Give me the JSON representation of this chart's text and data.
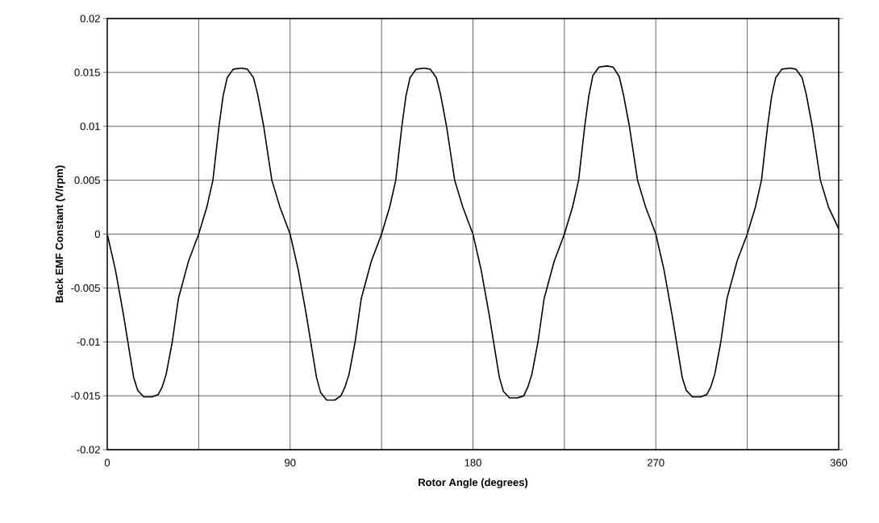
{
  "chart_data": {
    "type": "line",
    "xlabel": "Rotor Angle (degrees)",
    "ylabel": "Back EMF Constant (V/rpm)",
    "xlim": [
      0,
      360
    ],
    "ylim": [
      -0.02,
      0.02
    ],
    "xticks": [
      0,
      {
        "value": 45,
        "label": null
      },
      90,
      {
        "value": 135,
        "label": null
      },
      180,
      {
        "value": 225,
        "label": null
      },
      270,
      {
        "value": 315,
        "label": null
      },
      360
    ],
    "yticks": [
      -0.02,
      -0.015,
      -0.01,
      -0.005,
      0,
      0.005,
      0.01,
      0.015,
      0.02
    ],
    "grid": true,
    "marker": "none",
    "line_style": "solid",
    "series": [
      {
        "color": "#000000",
        "x": [
          0,
          4,
          8,
          11,
          13,
          15,
          18,
          22,
          25,
          27,
          29,
          32,
          35,
          40,
          45,
          49,
          52,
          55,
          57,
          59,
          62,
          66,
          69,
          72,
          74,
          77,
          81,
          85,
          90,
          94,
          98,
          101,
          103,
          105,
          108,
          112,
          115,
          117,
          119,
          122,
          125,
          130,
          135,
          139,
          142,
          145,
          147,
          149,
          152,
          156,
          159,
          162,
          164,
          167,
          171,
          175,
          180,
          184,
          188,
          191,
          193,
          195,
          198,
          202,
          205,
          207,
          209,
          212,
          215,
          220,
          225,
          229,
          232,
          235,
          237,
          239,
          242,
          246,
          249,
          252,
          254,
          257,
          261,
          265,
          270,
          274,
          278,
          281,
          283,
          285,
          288,
          292,
          295,
          297,
          299,
          302,
          305,
          310,
          315,
          319,
          322,
          325,
          327,
          329,
          332,
          336,
          339,
          342,
          344,
          347,
          351,
          355,
          360
        ],
        "values": [
          0,
          -0.0033,
          -0.0075,
          -0.011,
          -0.0133,
          -0.0145,
          -0.0151,
          -0.0151,
          -0.0149,
          -0.0142,
          -0.013,
          -0.01,
          -0.006,
          -0.0025,
          0,
          0.0025,
          0.005,
          0.01,
          0.0128,
          0.0145,
          0.0153,
          0.0154,
          0.0153,
          0.0145,
          0.013,
          0.01,
          0.005,
          0.0025,
          0,
          -0.0033,
          -0.0075,
          -0.011,
          -0.0133,
          -0.0147,
          -0.0154,
          -0.0154,
          -0.015,
          -0.0142,
          -0.013,
          -0.01,
          -0.006,
          -0.0025,
          0,
          0.0025,
          0.005,
          0.01,
          0.0128,
          0.0145,
          0.0153,
          0.0154,
          0.0153,
          0.0145,
          0.013,
          0.01,
          0.005,
          0.0025,
          0,
          -0.0033,
          -0.0075,
          -0.011,
          -0.0133,
          -0.0146,
          -0.0152,
          -0.0152,
          -0.015,
          -0.0142,
          -0.013,
          -0.01,
          -0.006,
          -0.0025,
          0,
          0.0025,
          0.005,
          0.01,
          0.0128,
          0.0147,
          0.0155,
          0.0156,
          0.0155,
          0.0146,
          0.013,
          0.01,
          0.005,
          0.0025,
          0,
          -0.0033,
          -0.0075,
          -0.011,
          -0.0133,
          -0.0145,
          -0.0151,
          -0.0151,
          -0.0149,
          -0.0142,
          -0.013,
          -0.01,
          -0.006,
          -0.0025,
          0,
          0.0025,
          0.005,
          0.01,
          0.0128,
          0.0145,
          0.0153,
          0.0154,
          0.0153,
          0.0145,
          0.013,
          0.01,
          0.005,
          0.0025,
          0.0005
        ]
      }
    ]
  }
}
